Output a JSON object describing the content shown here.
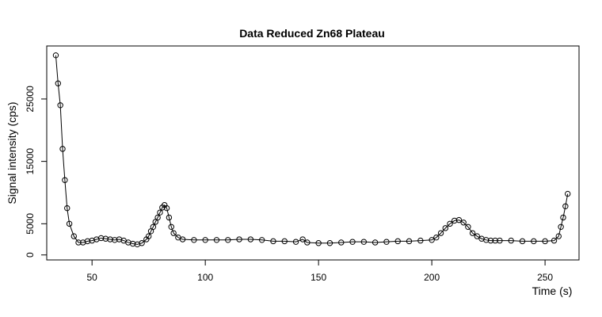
{
  "chart_data": {
    "type": "line",
    "title": "Data Reduced Zn68 Plateau",
    "xlabel": "Time (s)",
    "ylabel": "Signal intensity (cps)",
    "xlim": [
      30,
      265
    ],
    "ylim": [
      -800,
      33500
    ],
    "x_ticks": [
      50,
      100,
      150,
      200,
      250
    ],
    "y_ticks": [
      0,
      5000,
      15000,
      25000
    ],
    "x_tick_labels": [
      "50",
      "100",
      "150",
      "200",
      "250"
    ],
    "y_tick_labels": [
      "0",
      "5000",
      "15000",
      "25000"
    ],
    "markers": "open-circle-with-line",
    "grid": false,
    "legend": false,
    "series": [
      {
        "x": [
          34,
          35,
          36,
          37,
          38,
          39,
          40,
          42,
          44,
          46,
          48,
          50,
          52,
          54,
          56,
          58,
          60,
          62,
          64,
          66,
          68,
          70,
          72,
          74,
          75,
          76,
          77,
          78,
          79,
          80,
          81,
          82,
          83,
          84,
          85,
          86,
          88,
          90,
          95,
          100,
          105,
          110,
          115,
          120,
          125,
          130,
          135,
          140,
          143,
          145,
          150,
          155,
          160,
          165,
          170,
          175,
          180,
          185,
          190,
          195,
          200,
          202,
          204,
          206,
          208,
          210,
          212,
          214,
          216,
          218,
          220,
          222,
          224,
          226,
          228,
          230,
          235,
          240,
          245,
          250,
          254,
          256,
          257,
          258,
          259,
          260
        ],
        "y": [
          32000,
          27500,
          24000,
          17000,
          12000,
          7500,
          5000,
          3000,
          2000,
          2000,
          2200,
          2300,
          2500,
          2700,
          2600,
          2500,
          2400,
          2500,
          2300,
          2000,
          1800,
          1700,
          1900,
          2500,
          3000,
          3800,
          4500,
          5300,
          6000,
          6800,
          7600,
          8000,
          7500,
          6000,
          4500,
          3500,
          2800,
          2500,
          2400,
          2400,
          2400,
          2400,
          2500,
          2500,
          2400,
          2200,
          2200,
          2100,
          2500,
          2000,
          1900,
          1900,
          2000,
          2100,
          2100,
          2000,
          2100,
          2200,
          2200,
          2300,
          2400,
          2800,
          3500,
          4300,
          5000,
          5500,
          5600,
          5200,
          4500,
          3500,
          3000,
          2600,
          2400,
          2300,
          2300,
          2300,
          2300,
          2200,
          2200,
          2200,
          2300,
          3000,
          4500,
          6000,
          7800,
          9800
        ]
      }
    ]
  }
}
